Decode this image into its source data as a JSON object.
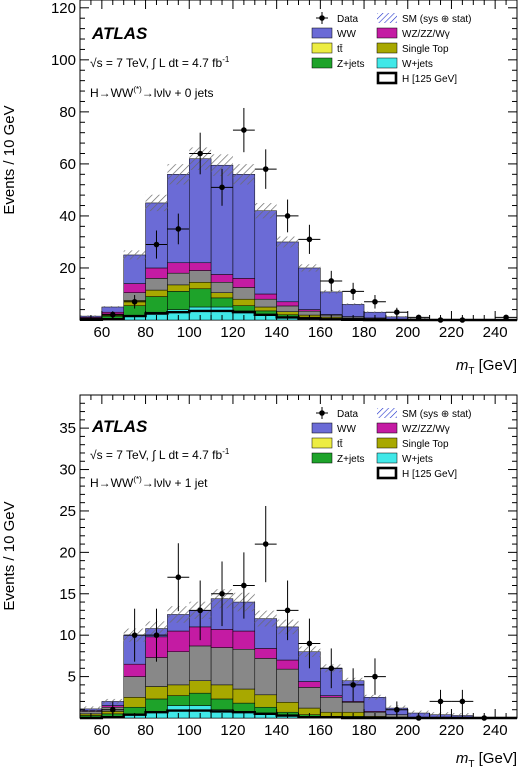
{
  "colors": {
    "WW": "#6b6bd6",
    "WZ/ZZ/Wγ": "#c41ba3",
    "tt": "#eded42",
    "Single Top": "#a8a800",
    "Z+jets": "#1ea32a",
    "W+jets": "#40e8e8",
    "Higgs": "#000000",
    "Data": "#000000",
    "SM band": "#6a6a6a"
  },
  "chart_data": [
    {
      "type": "bar",
      "stacked": true,
      "logo": "ATLAS",
      "lumi_label": "√s = 7 TeV, ∫ L dt = 4.7 fb⁻¹",
      "channel_label": "H→WW⁽*⁾→lνlν + 0 jets",
      "xlabel": "m_T [GeV]",
      "ylabel": "Events / 10 GeV",
      "xlim": [
        50,
        250
      ],
      "ylim": [
        0,
        123
      ],
      "xticks": [
        60,
        80,
        100,
        120,
        140,
        160,
        180,
        200,
        220,
        240
      ],
      "yticks": [
        20,
        40,
        60,
        80,
        100,
        120
      ],
      "bin_edges": [
        50,
        60,
        70,
        80,
        90,
        100,
        110,
        120,
        130,
        140,
        150,
        160,
        170,
        180,
        190,
        200,
        210,
        220,
        230,
        240,
        250
      ],
      "legend": [
        "Data",
        "SM (sys ⊕ stat)",
        "WW",
        "WZ/ZZ/Wγ",
        "tt̄",
        "Single Top",
        "Z+jets",
        "W+jets",
        "H [125 GeV]"
      ],
      "series": [
        {
          "name": "W+jets",
          "values": [
            0.2,
            0.5,
            1.5,
            3,
            4,
            5,
            5,
            3.5,
            2,
            1,
            0.5,
            0.3,
            0.2,
            0.1,
            0,
            0,
            0,
            0,
            0,
            0
          ]
        },
        {
          "name": "Z+jets",
          "values": [
            0.3,
            1,
            4,
            6,
            7,
            7,
            3.5,
            2,
            1.5,
            1,
            0.6,
            0.3,
            0.2,
            0.1,
            0,
            0,
            0,
            0,
            0,
            0
          ]
        },
        {
          "name": "Single Top",
          "values": [
            0,
            0.3,
            2,
            2.5,
            2.5,
            2.5,
            2,
            2.5,
            1.5,
            1.2,
            0.8,
            0.5,
            0.3,
            0.2,
            0.1,
            0,
            0,
            0,
            0,
            0
          ]
        },
        {
          "name": "tt̄",
          "values": [
            0.2,
            0.5,
            3,
            4.5,
            4.5,
            4.5,
            4,
            4.5,
            3,
            2.2,
            1.5,
            0.8,
            0.5,
            0.3,
            0.1,
            0,
            0,
            0,
            0,
            0
          ]
        },
        {
          "name": "WZ/ZZ/Wγ",
          "values": [
            0.3,
            0.7,
            3.5,
            4,
            4,
            3,
            3,
            3.5,
            2,
            1.6,
            0.6,
            0.2,
            0.1,
            0.1,
            0,
            0,
            0,
            0,
            0,
            0
          ]
        },
        {
          "name": "WW",
          "values": [
            0.5,
            2,
            11,
            25,
            34,
            40,
            42,
            40,
            32,
            23,
            16,
            8.7,
            4.7,
            2.2,
            1,
            0.5,
            0.3,
            0.2,
            0.1,
            0.1
          ]
        }
      ],
      "higgs": [
        0.1,
        0.3,
        1.5,
        2.5,
        3,
        3.5,
        3.5,
        3,
        2,
        1,
        0.5,
        0.2,
        0.1,
        0,
        0,
        0,
        0,
        0,
        0,
        0
      ],
      "data": {
        "x": [
          65,
          75,
          85,
          95,
          105,
          115,
          125,
          135,
          145,
          155,
          165,
          175,
          185,
          195,
          205,
          215,
          225,
          245
        ],
        "y": [
          2,
          7,
          29,
          35,
          64,
          51,
          73,
          58,
          40,
          31,
          15,
          11,
          7,
          3,
          1,
          0,
          0,
          1
        ],
        "err": [
          1.4,
          2.6,
          5.4,
          5.9,
          8,
          7.1,
          8.5,
          7.6,
          6.3,
          5.6,
          3.9,
          3.3,
          2.6,
          1.7,
          1,
          0,
          0,
          1
        ]
      },
      "band_frac": 0.07
    },
    {
      "type": "bar",
      "stacked": true,
      "logo": "ATLAS",
      "lumi_label": "√s = 7 TeV, ∫ L dt = 4.7 fb⁻¹",
      "channel_label": "H→WW⁽*⁾→lνlν + 1 jet",
      "xlabel": "m_T [GeV]",
      "ylabel": "Events / 10 GeV",
      "xlim": [
        50,
        250
      ],
      "ylim": [
        0,
        39
      ],
      "xticks": [
        60,
        80,
        100,
        120,
        140,
        160,
        180,
        200,
        220,
        240
      ],
      "yticks": [
        5,
        10,
        15,
        20,
        25,
        30,
        35
      ],
      "bin_edges": [
        50,
        60,
        70,
        80,
        90,
        100,
        110,
        120,
        130,
        140,
        150,
        160,
        170,
        180,
        190,
        200,
        210,
        220,
        230,
        240,
        250
      ],
      "legend": [
        "Data",
        "SM (sys ⊕ stat)",
        "WW",
        "WZ/ZZ/Wγ",
        "tt̄",
        "Single Top",
        "Z+jets",
        "W+jets",
        "H [125 GeV]"
      ],
      "series": [
        {
          "name": "W+jets",
          "values": [
            0.1,
            0.2,
            0.5,
            0.8,
            1.5,
            1.5,
            1,
            0.8,
            0.6,
            0.3,
            0.2,
            0.1,
            0.1,
            0,
            0,
            0,
            0,
            0,
            0,
            0
          ]
        },
        {
          "name": "Z+jets",
          "values": [
            0.2,
            0.3,
            0.8,
            1.5,
            1.2,
            1.5,
            1.3,
            1,
            0.7,
            0.4,
            0.2,
            0.1,
            0.1,
            0,
            0,
            0,
            0,
            0,
            0,
            0
          ]
        },
        {
          "name": "Single Top",
          "values": [
            0.2,
            0.3,
            1.2,
            1.5,
            1.3,
            1.5,
            1.7,
            1.7,
            1.5,
            1.2,
            0.8,
            0.5,
            0.5,
            0.2,
            0.1,
            0,
            0,
            0,
            0,
            0
          ]
        },
        {
          "name": "tt̄",
          "values": [
            0.3,
            0.5,
            2.5,
            3.5,
            4,
            4.2,
            4.5,
            4.8,
            4.4,
            4,
            2.5,
            1.8,
            1.2,
            0.5,
            0.3,
            0.1,
            0.1,
            0.1,
            0,
            0
          ]
        },
        {
          "name": "WZ/ZZ/Wγ",
          "values": [
            0.1,
            0.2,
            1.5,
            2.5,
            2.5,
            2.3,
            2.2,
            2.2,
            1.2,
            1.1,
            0.7,
            0.2,
            0.1,
            0.1,
            0,
            0,
            0,
            0,
            0,
            0
          ]
        },
        {
          "name": "WW",
          "values": [
            0.2,
            0.5,
            3.5,
            1,
            2,
            2,
            3.7,
            3.5,
            3.6,
            4,
            3.6,
            3.3,
            2.5,
            1.7,
            0.8,
            0.5,
            0.3,
            0.2,
            0.1,
            0.1
          ]
        }
      ],
      "higgs": [
        0,
        0.1,
        0.4,
        0.7,
        0.9,
        0.9,
        0.8,
        0.7,
        0.5,
        0.3,
        0.1,
        0.1,
        0,
        0,
        0,
        0,
        0,
        0,
        0,
        0
      ],
      "data": {
        "x": [
          65,
          75,
          85,
          95,
          105,
          115,
          125,
          135,
          145,
          155,
          165,
          175,
          185,
          195,
          205,
          215,
          225,
          235
        ],
        "y": [
          1,
          10,
          10,
          17,
          13,
          15,
          16,
          21,
          13,
          9,
          6,
          4,
          5,
          1,
          0,
          2,
          2,
          0
        ],
        "err": [
          1,
          3.2,
          3.2,
          4.1,
          3.6,
          3.9,
          4,
          4.6,
          3.6,
          3,
          2.4,
          2,
          2.2,
          1,
          0,
          1.4,
          1.4,
          0
        ]
      },
      "band_frac": 0.08
    }
  ]
}
